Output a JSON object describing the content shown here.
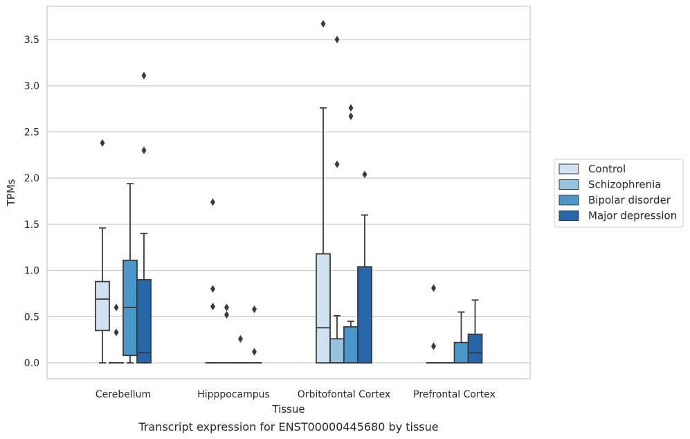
{
  "caption": "Transcript expression for ENST00000445680 by tissue",
  "chart_data": {
    "type": "box",
    "title": "",
    "xlabel": "Tissue",
    "ylabel": "TPMs",
    "ylim": [
      -0.18,
      3.87
    ],
    "yticks": [
      0.0,
      0.5,
      1.0,
      1.5,
      2.0,
      2.5,
      3.0,
      3.5
    ],
    "ytick_labels": [
      "0.0",
      "0.5",
      "1.0",
      "1.5",
      "2.0",
      "2.5",
      "3.0",
      "3.5"
    ],
    "categories": [
      "Cerebellum",
      "Hipppocampus",
      "Orbitofontal Cortex",
      "Prefrontal Cortex"
    ],
    "grid": true,
    "legend_position": "outside-right",
    "series": [
      {
        "name": "Control",
        "color": "#d0e1f2",
        "boxes": [
          {
            "whislo": 0.0,
            "q1": 0.35,
            "med": 0.69,
            "q3": 0.88,
            "whishi": 1.46,
            "fliers": [
              2.38
            ]
          },
          {
            "whislo": 0.0,
            "q1": 0.0,
            "med": 0.0,
            "q3": 0.0,
            "whishi": 0.0,
            "fliers": [
              1.74,
              0.8,
              0.61
            ]
          },
          {
            "whislo": 0.0,
            "q1": 0.0,
            "med": 0.38,
            "q3": 1.18,
            "whishi": 2.76,
            "fliers": [
              3.67
            ]
          },
          {
            "whislo": 0.0,
            "q1": 0.0,
            "med": 0.0,
            "q3": 0.0,
            "whishi": 0.0,
            "fliers": [
              0.81,
              0.18
            ]
          }
        ]
      },
      {
        "name": "Schizophrenia",
        "color": "#94c4df",
        "boxes": [
          {
            "whislo": 0.0,
            "q1": 0.0,
            "med": 0.0,
            "q3": 0.0,
            "whishi": 0.0,
            "fliers": [
              0.6,
              0.33
            ]
          },
          {
            "whislo": 0.0,
            "q1": 0.0,
            "med": 0.0,
            "q3": 0.0,
            "whishi": 0.0,
            "fliers": [
              0.6,
              0.52
            ]
          },
          {
            "whislo": 0.0,
            "q1": 0.0,
            "med": 0.0,
            "q3": 0.26,
            "whishi": 0.51,
            "fliers": [
              3.5,
              2.15
            ]
          },
          {
            "whislo": 0.0,
            "q1": 0.0,
            "med": 0.0,
            "q3": 0.0,
            "whishi": 0.0,
            "fliers": []
          }
        ]
      },
      {
        "name": "Bipolar disorder",
        "color": "#4a98c9",
        "boxes": [
          {
            "whislo": 0.0,
            "q1": 0.08,
            "med": 0.6,
            "q3": 1.11,
            "whishi": 1.94,
            "fliers": []
          },
          {
            "whislo": 0.0,
            "q1": 0.0,
            "med": 0.0,
            "q3": 0.0,
            "whishi": 0.0,
            "fliers": [
              0.26
            ]
          },
          {
            "whislo": 0.0,
            "q1": 0.0,
            "med": 0.0,
            "q3": 0.39,
            "whishi": 0.45,
            "fliers": [
              2.76,
              2.67
            ]
          },
          {
            "whislo": 0.0,
            "q1": 0.0,
            "med": 0.0,
            "q3": 0.22,
            "whishi": 0.55,
            "fliers": []
          }
        ]
      },
      {
        "name": "Major depression",
        "color": "#2565a8",
        "boxes": [
          {
            "whislo": 0.0,
            "q1": 0.0,
            "med": 0.11,
            "q3": 0.9,
            "whishi": 1.4,
            "fliers": [
              3.11,
              2.3
            ]
          },
          {
            "whislo": 0.0,
            "q1": 0.0,
            "med": 0.0,
            "q3": 0.0,
            "whishi": 0.0,
            "fliers": [
              0.58,
              0.12
            ]
          },
          {
            "whislo": 0.0,
            "q1": 0.0,
            "med": 0.0,
            "q3": 1.04,
            "whishi": 1.6,
            "fliers": [
              2.04
            ]
          },
          {
            "whislo": 0.0,
            "q1": 0.0,
            "med": 0.11,
            "q3": 0.31,
            "whishi": 0.68,
            "fliers": []
          }
        ]
      }
    ]
  }
}
